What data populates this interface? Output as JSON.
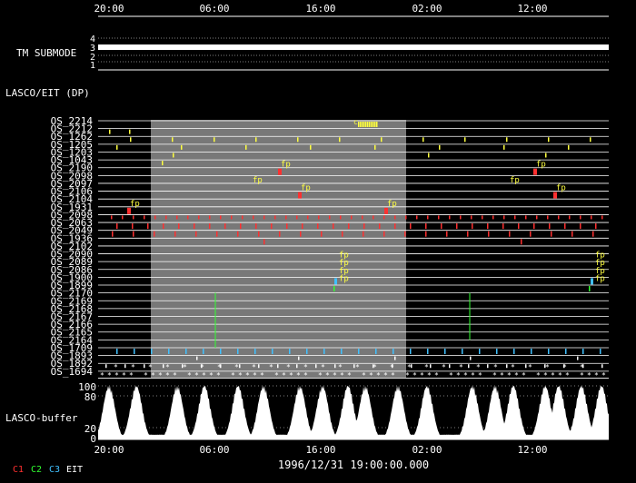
{
  "time_axis": {
    "ticks": [
      "20:00",
      "06:00",
      "16:00",
      "02:00",
      "12:00"
    ],
    "date_label": "1996/12/31 19:00:00.000"
  },
  "submode_panel": {
    "title": "TM SUBMODE",
    "levels": [
      "4",
      "3",
      "2",
      "1"
    ],
    "current_level": 3
  },
  "instrument_panel": {
    "title": "LASCO/EIT (DP)",
    "rows": [
      "OS_2214",
      "OS_2212",
      "OS_1262",
      "OS_1205",
      "OS_1203",
      "OS_1043",
      "OS_2190",
      "OS_2098",
      "OS_2097",
      "OS_2106",
      "OS_2104",
      "OS_1931",
      "OS_2098",
      "OS_2063",
      "OS_2049",
      "OS_1936",
      "OS_2102",
      "OS_2090",
      "OS_2089",
      "OS_2086",
      "OS_1900",
      "OS_1899",
      "OS_2170",
      "OS_2169",
      "OS_2168",
      "OS_2167",
      "OS_2166",
      "OS_2165",
      "OS_2164",
      "OS_1709",
      "OS_1893",
      "OS_1892",
      "OS_1694"
    ],
    "annotation_fp": "fp",
    "annotation_c": "c"
  },
  "buffer_panel": {
    "title": "LASCO-buffer",
    "y_ticks": [
      "100",
      "80",
      "20",
      "0"
    ]
  },
  "legend": [
    {
      "label": "C1",
      "color": "#ff3030"
    },
    {
      "label": "C2",
      "color": "#30ff30"
    },
    {
      "label": "C3",
      "color": "#40c0ff"
    },
    {
      "label": "EIT",
      "color": "#ffffff"
    }
  ]
}
